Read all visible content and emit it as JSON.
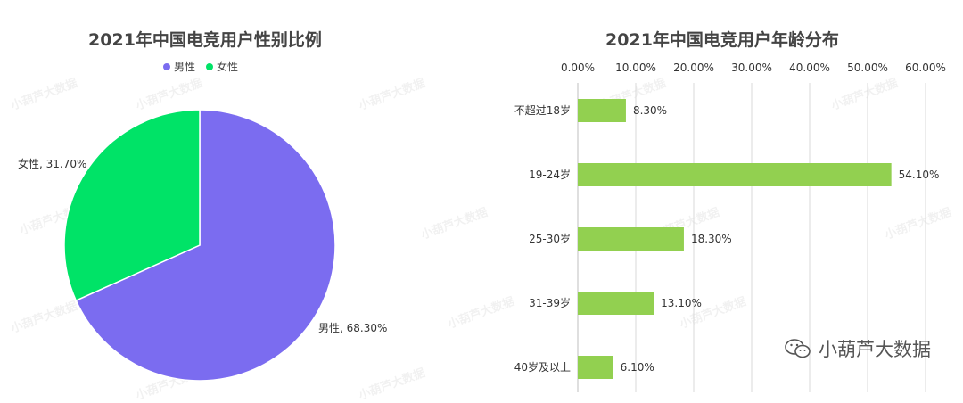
{
  "brand": {
    "text": "小葫芦大数据",
    "icon": "wechat-icon"
  },
  "watermark": "小葫芦大数据",
  "colors": {
    "male": "#7B6CF0",
    "female": "#00E367",
    "bar": "#92D050",
    "grid": "#D9D9D9"
  },
  "chart_data": [
    {
      "type": "pie",
      "title": "2021年中国电竞用户性别比例",
      "legend": {
        "placement": "top",
        "entries": [
          "男性",
          "女性"
        ]
      },
      "slices": [
        {
          "name": "男性",
          "value": 68.3,
          "label": "男性, 68.30%"
        },
        {
          "name": "女性",
          "value": 31.7,
          "label": "女性, 31.70%"
        }
      ]
    },
    {
      "type": "bar",
      "orientation": "horizontal",
      "title": "2021年中国电竞用户年龄分布",
      "categories": [
        "不超过18岁",
        "19-24岁",
        "25-30岁",
        "31-39岁",
        "40岁及以上"
      ],
      "values": [
        8.3,
        54.1,
        18.3,
        13.1,
        6.1
      ],
      "value_labels": [
        "8.30%",
        "54.10%",
        "18.30%",
        "13.10%",
        "6.10%"
      ],
      "xlim": [
        0,
        60
      ],
      "x_ticks": [
        "0.00%",
        "10.00%",
        "20.00%",
        "30.00%",
        "40.00%",
        "50.00%",
        "60.00%"
      ],
      "x_axis_position": "top",
      "grid": true
    }
  ]
}
